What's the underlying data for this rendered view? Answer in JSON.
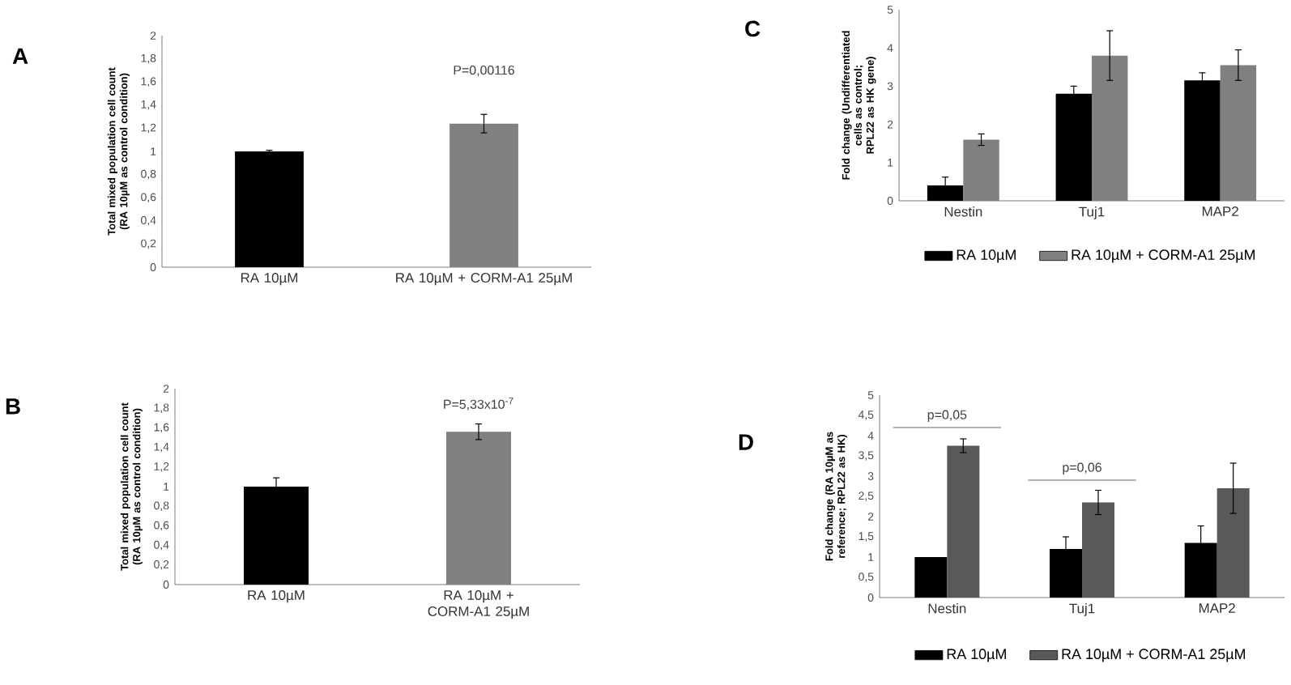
{
  "chart_data": [
    {
      "type": "bar",
      "title": "A",
      "ylabel": "Total mixed population cell count (RA 10µM as control condition)",
      "categories": [
        "RA 10µM",
        "RA 10µM + CORM-A1 25µM"
      ],
      "values": [
        1.0,
        1.24
      ],
      "errors": [
        0.01,
        0.08
      ],
      "colors": [
        "#000000",
        "#808080"
      ],
      "ylim": [
        0,
        2
      ],
      "yticks": [
        0,
        {
          "value": 0.2,
          "label": "0,2"
        },
        {
          "value": 0.4,
          "label": "0,4"
        },
        {
          "value": 0.6,
          "label": "0,6"
        },
        {
          "value": 0.8,
          "label": "0,8"
        },
        1,
        {
          "value": 1.2,
          "label": "1,2"
        },
        {
          "value": 1.4,
          "label": "1,4"
        },
        {
          "value": 1.6,
          "label": "1,6"
        },
        {
          "value": 1.8,
          "label": "1,8"
        },
        2
      ],
      "annotations": [
        "P=0,00116"
      ]
    },
    {
      "type": "bar",
      "title": "B",
      "ylabel": "Total mixed population cell count (RA 10µM as control condition)",
      "categories": [
        "RA 10µM",
        "RA 10µM + CORM-A1 25µM"
      ],
      "values": [
        1.0,
        1.56
      ],
      "errors": [
        0.09,
        0.08
      ],
      "colors": [
        "#000000",
        "#808080"
      ],
      "ylim": [
        0,
        2
      ],
      "yticks": [
        0,
        {
          "value": 0.2,
          "label": "0,2"
        },
        {
          "value": 0.4,
          "label": "0,4"
        },
        {
          "value": 0.6,
          "label": "0,6"
        },
        {
          "value": 0.8,
          "label": "0,8"
        },
        1,
        {
          "value": 1.2,
          "label": "1,2"
        },
        {
          "value": 1.4,
          "label": "1,4"
        },
        {
          "value": 1.6,
          "label": "1,6"
        },
        {
          "value": 1.8,
          "label": "1,8"
        },
        2
      ],
      "annotations": [
        "P=5,33x10$^{-7}$"
      ]
    },
    {
      "type": "bar",
      "title": "C",
      "ylabel": "Fold change (Undifferentiated cells as control; RPL22 as HK gene)",
      "categories": [
        "Nestin",
        "Tuj1",
        "MAP2"
      ],
      "series": [
        {
          "name": "RA 10µM",
          "color": "#000000",
          "values": [
            0.4,
            2.8,
            3.15
          ],
          "errors": [
            0.22,
            0.2,
            0.2
          ]
        },
        {
          "name": "RA 10µM + CORM-A1 25µM",
          "color": "#808080",
          "values": [
            1.6,
            3.8,
            3.55
          ],
          "errors": [
            0.15,
            0.65,
            0.4
          ]
        }
      ],
      "ylim": [
        0,
        5
      ],
      "yticks": [
        0,
        1,
        2,
        3,
        4,
        5
      ],
      "legend": "bottom"
    },
    {
      "type": "bar",
      "title": "D",
      "ylabel": "Fold change (RA 10µM as reference; RPL22 as HK)",
      "categories": [
        "Nestin",
        "Tuj1",
        "MAP2"
      ],
      "series": [
        {
          "name": "RA 10µM",
          "color": "#000000",
          "values": [
            1.0,
            1.2,
            1.35
          ],
          "errors": [
            null,
            0.3,
            0.42
          ]
        },
        {
          "name": "RA 10µM + CORM-A1 25µM",
          "color": "#595959",
          "values": [
            3.75,
            2.35,
            2.7
          ],
          "errors": [
            0.17,
            0.3,
            0.62
          ]
        }
      ],
      "ylim": [
        0,
        5
      ],
      "yticks": [
        0,
        {
          "value": 0.5,
          "label": "0,5"
        },
        1,
        {
          "value": 1.5,
          "label": "1,5"
        },
        2,
        {
          "value": 2.5,
          "label": "2,5"
        },
        3,
        {
          "value": 3.5,
          "label": "3,5"
        },
        4,
        {
          "value": 4.5,
          "label": "4,5"
        },
        5
      ],
      "legend": "bottom",
      "annotations": [
        "p=0,05",
        "p=0,06"
      ]
    }
  ]
}
